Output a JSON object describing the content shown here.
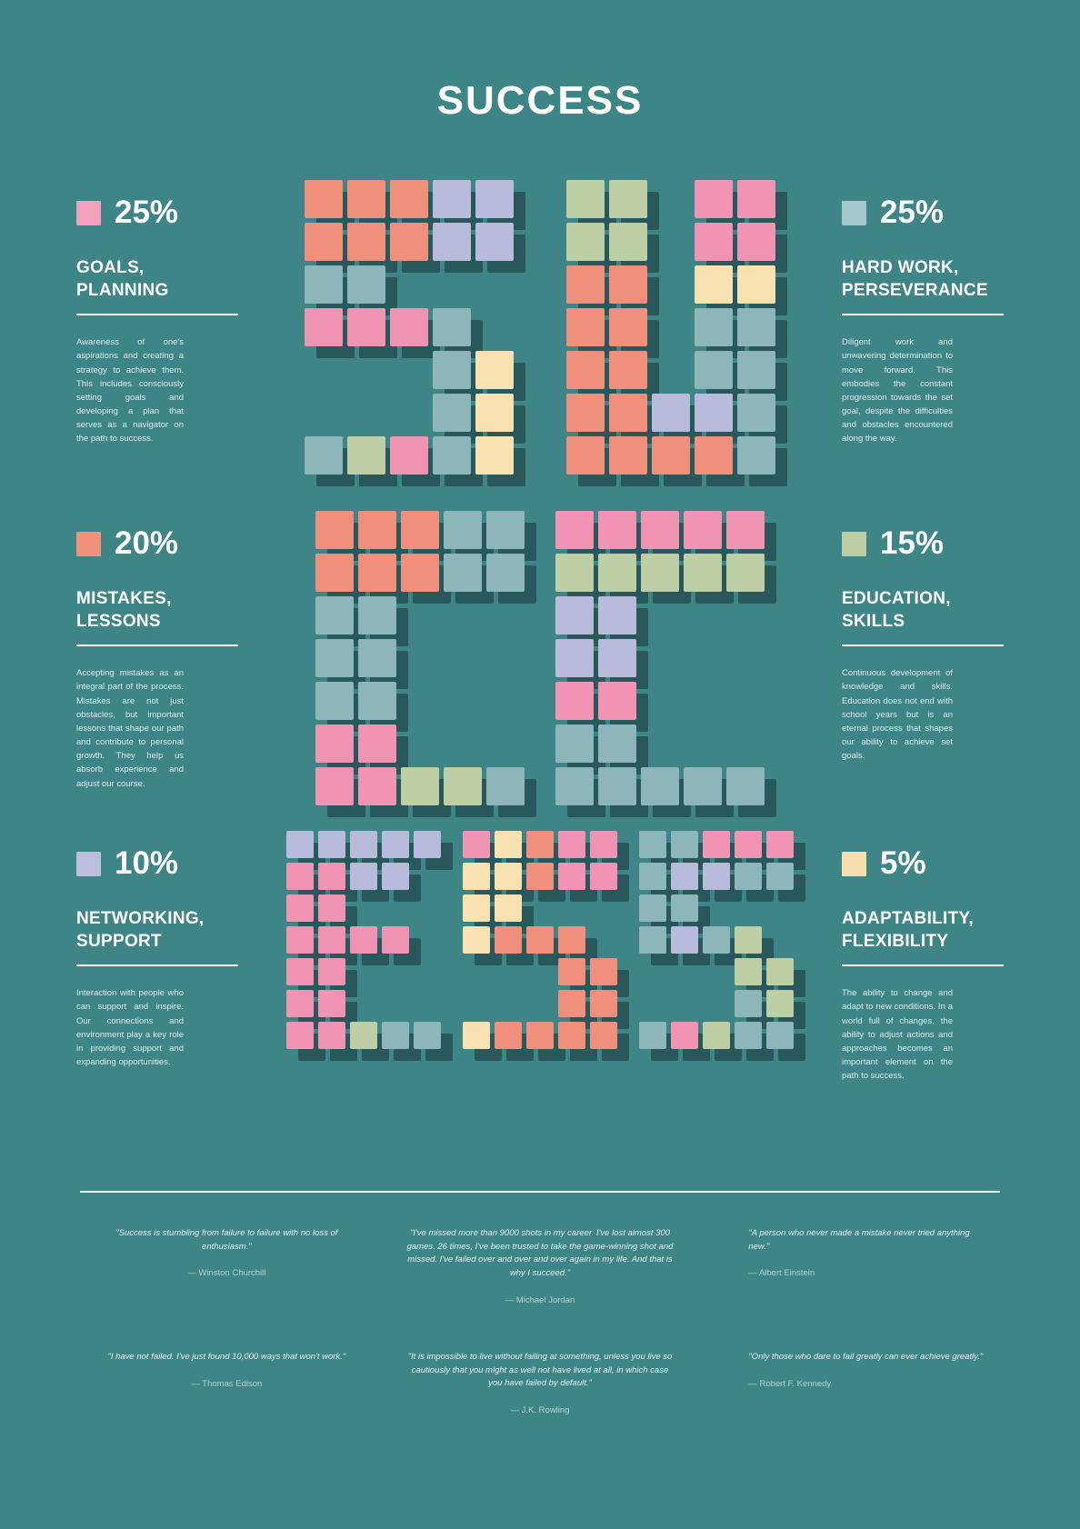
{
  "title": "SUCCESS",
  "colors": {
    "background": "#3E8587",
    "shadow": "#265458",
    "text": "#FFFFFF"
  },
  "chart_data": {
    "type": "pie",
    "title": "SUCCESS",
    "categories": [
      "Goals, Planning",
      "Hard Work, Perseverance",
      "Mistakes, Lessons",
      "Education, Skills",
      "Networking, Support",
      "Adaptability, Flexibility"
    ],
    "values": [
      25,
      25,
      20,
      15,
      10,
      5
    ],
    "unit": "%",
    "colors": [
      "#F2A0BC",
      "#A3C7CB",
      "#F0917A",
      "#BCCDA2",
      "#BCBFDC",
      "#F8DFAE"
    ],
    "legend_position": "left-right margins around mosaic letters"
  },
  "sections": [
    {
      "percent": "25%",
      "color": "#F2A0BC",
      "title_line1": "GOALS,",
      "title_line2": "PLANNING",
      "body": "Awareness of one's aspirations and creating a strategy to achieve them. This includes consciously setting goals and developing a plan that serves as a navigator on the path to success."
    },
    {
      "percent": "25%",
      "color": "#A3C7CB",
      "title_line1": "HARD WORK,",
      "title_line2": "PERSEVERANCE",
      "body": "Diligent work and unwavering determination to move forward. This embodies the constant progression towards the set goal, despite the difficulties and obstacles encountered along the way."
    },
    {
      "percent": "20%",
      "color": "#F0917A",
      "title_line1": "MISTAKES,",
      "title_line2": "LESSONS",
      "body": "Accepting mistakes as an integral part of the process. Mistakes are not just obstacles, but important lessons that shape our path and contribute to personal growth. They help us absorb experience and adjust our course."
    },
    {
      "percent": "15%",
      "color": "#BCCDA2",
      "title_line1": "EDUCATION,",
      "title_line2": "SKILLS",
      "body": "Continuous development of knowledge and skills. Education does not end with school years but is an eternal process that shapes our ability to achieve set goals."
    },
    {
      "percent": "10%",
      "color": "#BCBFDC",
      "title_line1": "NETWORKING,",
      "title_line2": "SUPPORT",
      "body": "Interaction with people who can support and inspire. Our connections and environment play a key role in providing support and expanding opportunities."
    },
    {
      "percent": "5%",
      "color": "#F8DFAE",
      "title_line1": "ADAPTABILITY,",
      "title_line2": "FLEXIBILITY",
      "body": "The ability to change and adapt to new conditions. In a world full of changes, the ability to adjust actions and approaches becomes an important element on the path to success."
    }
  ],
  "letters": {
    "palette": {
      "s": "#F0907C",
      "p": "#F193B2",
      "b": "#8CB6B9",
      "g": "#BECFA6",
      "l": "#B8BBDA",
      "c": "#F8E2B2"
    },
    "rows": [
      {
        "tile": 42,
        "gap_between": 58,
        "letters": [
          {
            "char": "S",
            "map": [
              "sssll",
              "sssll",
              "bb...",
              "pppb.",
              "...bc",
              "...bc",
              "bgpbc"
            ]
          },
          {
            "char": "U",
            "map": [
              "gg.pp",
              "gg.pp",
              "ss.cc",
              "ss.bb",
              "ss.bb",
              "ssllb",
              "ssssb"
            ]
          }
        ]
      },
      {
        "tile": 42,
        "gap_between": 34,
        "letters": [
          {
            "char": "C",
            "map": [
              "sssbb",
              "sssbb",
              "bb...",
              "bb...",
              "bb...",
              "pp...",
              "ppggb"
            ]
          },
          {
            "char": "C",
            "map": [
              "ppppp",
              "ggggg",
              "ll...",
              "ll...",
              "pp...",
              "bb...",
              "bbbbb"
            ]
          }
        ]
      },
      {
        "tile": 30,
        "gap_between": 24,
        "letters": [
          {
            "char": "E",
            "map": [
              "lllll",
              "ppll.",
              "pp...",
              "pppp.",
              "pp...",
              "pp...",
              "ppgbb"
            ]
          },
          {
            "char": "S",
            "map": [
              "pcspp",
              "ccspp",
              "cc...",
              "csss.",
              "...ss",
              "...ss",
              "cssss"
            ]
          },
          {
            "char": "S",
            "map": [
              "bbppp",
              "bllbb",
              "bb...",
              "blbg.",
              "...gg",
              "...bg",
              "bpgbb"
            ]
          }
        ]
      }
    ]
  },
  "quotes": [
    {
      "text": "\"Success is stumbling from failure to failure with no loss of enthusiasm.\"",
      "author": "— Winston Churchill"
    },
    {
      "text": "\"I've missed more than 9000 shots in my career. I've lost almost 300 games. 26 times, I've been trusted to take the game-winning shot and missed. I've failed over and over and over again in my life. And that is why I succeed.\"",
      "author": "— Michael Jordan"
    },
    {
      "text": "\"A person who never made a mistake never tried anything new.\"",
      "author": "— Albert Einstein"
    },
    {
      "text": "\"I have not failed. I've just found 10,000 ways that won't work.\"",
      "author": "— Thomas Edison"
    },
    {
      "text": "\"It is impossible to live without failing at something, unless you live so cautiously that you might as well not have lived at all, in which case you have failed by default.\"",
      "author": "— J.K. Rowling"
    },
    {
      "text": "\"Only those who dare to fail greatly can ever achieve greatly.\"",
      "author": "— Robert F. Kennedy"
    }
  ]
}
